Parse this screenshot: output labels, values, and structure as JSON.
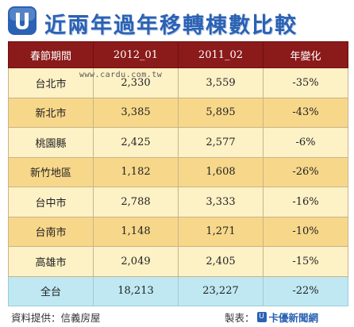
{
  "title": "近兩年過年移轉棟數比較",
  "watermark": "www.cardu.com.tw",
  "table": {
    "headers": [
      "春節期間",
      "2012_01",
      "2011_02",
      "年變化"
    ],
    "rows": [
      {
        "label": "台北市",
        "y2012": "2,330",
        "y2011": "3,559",
        "change": "-35%"
      },
      {
        "label": "新北市",
        "y2012": "3,385",
        "y2011": "5,895",
        "change": "-43%"
      },
      {
        "label": "桃園縣",
        "y2012": "2,425",
        "y2011": "2,577",
        "change": "-6%"
      },
      {
        "label": "新竹地區",
        "y2012": "1,182",
        "y2011": "1,608",
        "change": "-26%"
      },
      {
        "label": "台中市",
        "y2012": "2,788",
        "y2011": "3,333",
        "change": "-16%"
      },
      {
        "label": "台南市",
        "y2012": "1,148",
        "y2011": "1,271",
        "change": "-10%"
      },
      {
        "label": "高雄市",
        "y2012": "2,049",
        "y2011": "2,405",
        "change": "-15%"
      }
    ],
    "total": {
      "label": "全台",
      "y2012": "18,213",
      "y2011": "23,227",
      "change": "-22%"
    }
  },
  "footer": {
    "source": "資料提供：信義房屋",
    "made_by_label": "製表：",
    "made_by_brand": "卡優新聞網"
  },
  "colors": {
    "header_bg": "#8b1a1a",
    "row_light": "#fdf1c6",
    "row_dark": "#f7d78a",
    "total_bg": "#bfe8f2",
    "title_color": "#2b62b3"
  }
}
